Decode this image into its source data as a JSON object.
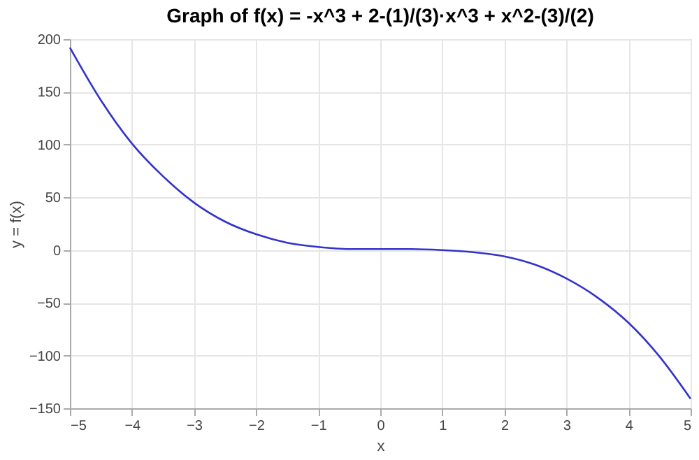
{
  "chart_data": {
    "type": "line",
    "title": "Graph of f(x) = -x^3 + 2-(1)/(3)·x^3 + x^2-(3)/(2)",
    "xlabel": "x",
    "ylabel": "y = f(x)",
    "x": [
      -5,
      -4.5,
      -4,
      -3.5,
      -3,
      -2.5,
      -2,
      -1.5,
      -1,
      -0.5,
      0,
      0.5,
      1,
      1.5,
      2,
      2.5,
      3,
      3.5,
      4,
      4.5,
      5
    ],
    "series": [
      {
        "color": "#3333cc",
        "values": [
          192,
          142,
          101,
          70,
          45,
          27,
          15,
          7,
          3,
          1,
          1,
          1,
          0,
          -2,
          -6,
          -14,
          -27,
          -45,
          -69,
          -101,
          -141
        ]
      }
    ],
    "xlim": [
      -5,
      5
    ],
    "xticks": [
      -5,
      -4,
      -3,
      -2,
      -1,
      0,
      1,
      2,
      3,
      4,
      5
    ],
    "ylim": [
      -150,
      200
    ],
    "yticks": [
      -150,
      -100,
      -50,
      0,
      50,
      100,
      150,
      200
    ],
    "grid": true,
    "marker": "none",
    "line_style": "solid"
  }
}
